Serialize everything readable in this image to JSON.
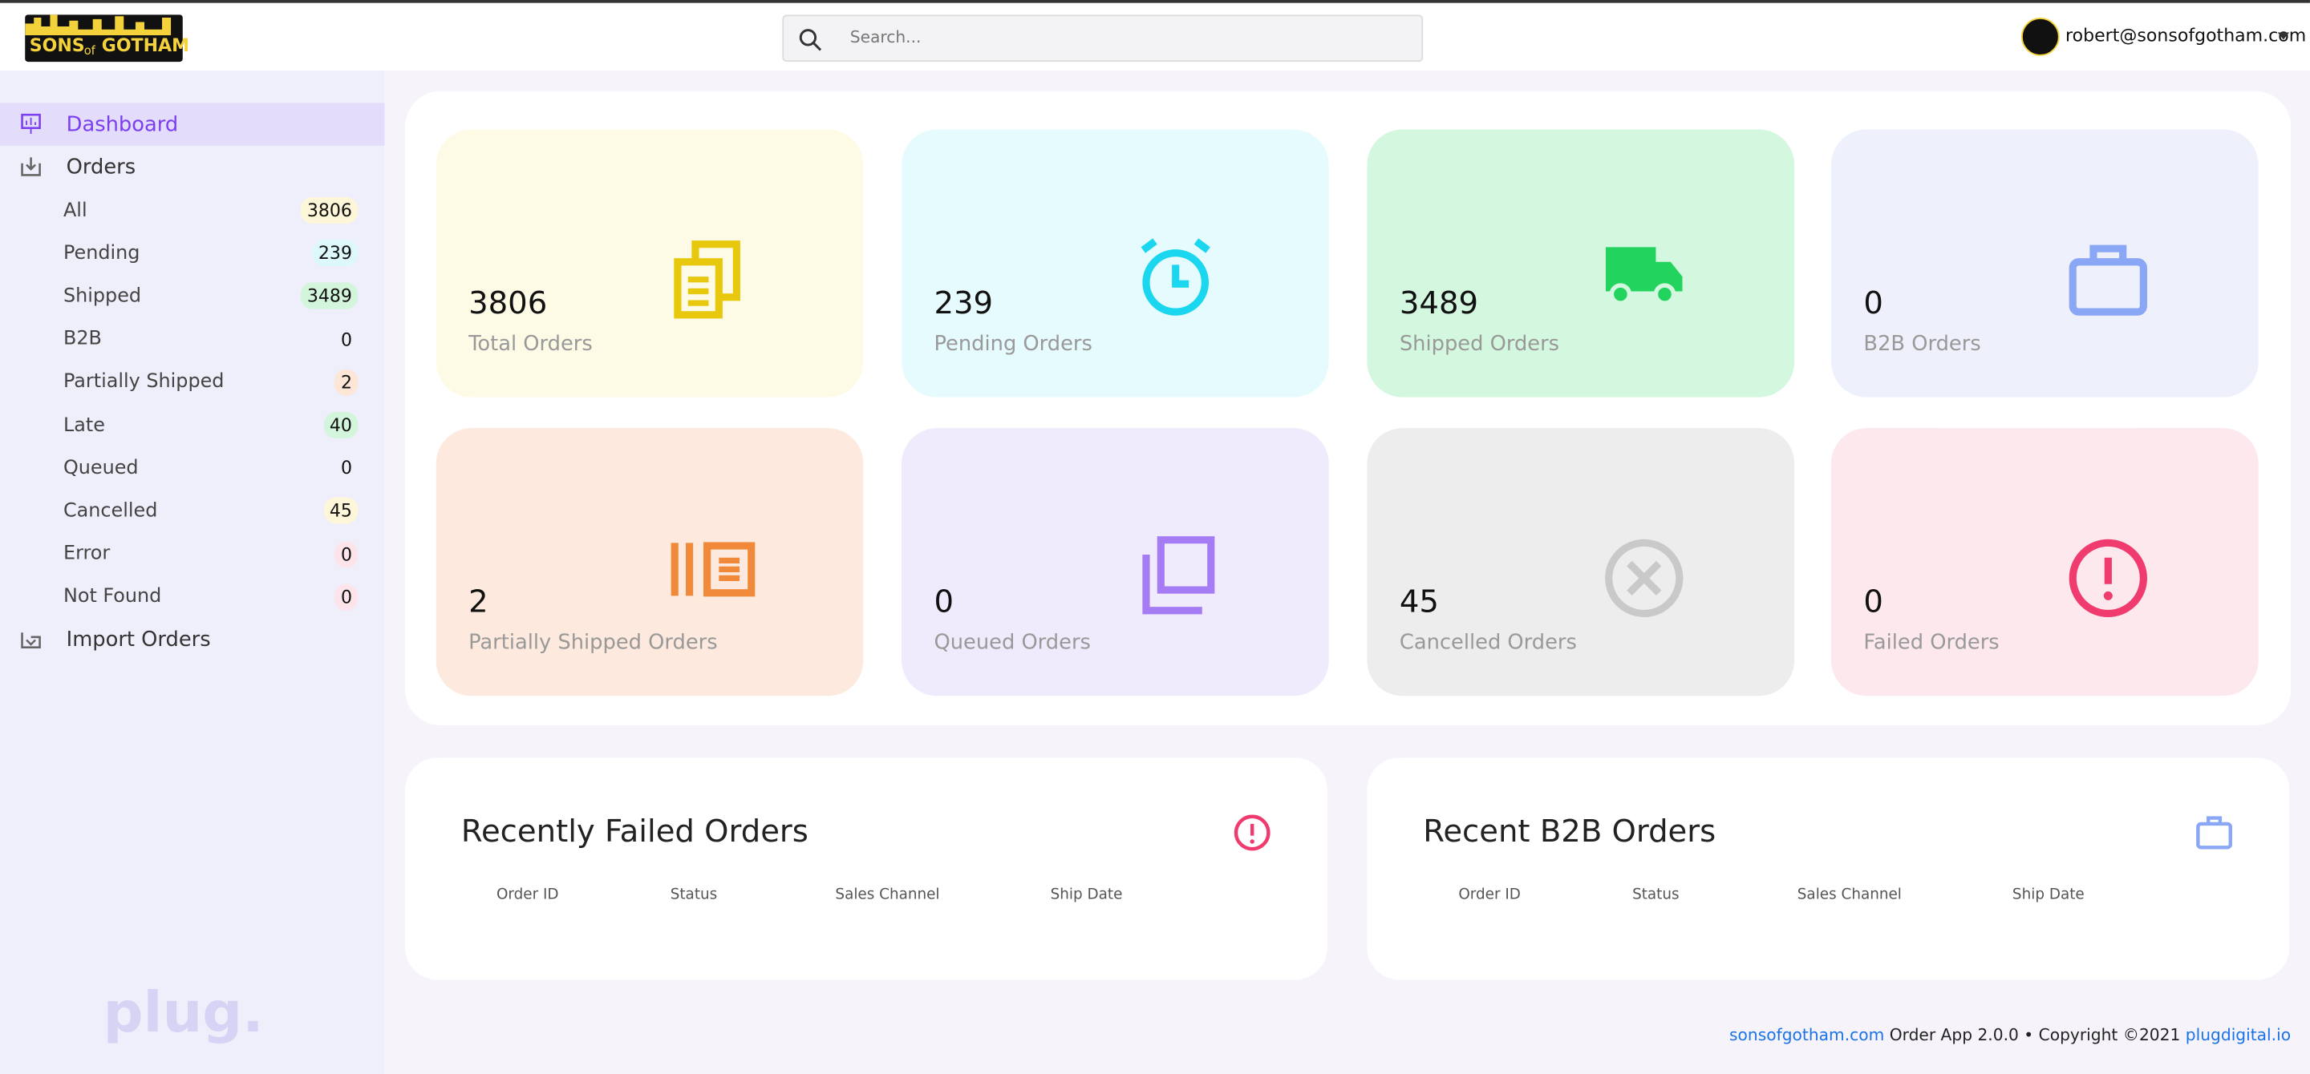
{
  "header": {
    "logo": [
      "SONS",
      "of",
      "GOTHAM"
    ],
    "search_placeholder": "Search...",
    "user": "robert@sonsofgotham.com"
  },
  "sidebar": {
    "dashboard": "Dashboard",
    "orders": "Orders",
    "order_filters": [
      {
        "label": "All",
        "count": 3806
      },
      {
        "label": "Pending",
        "count": 239
      },
      {
        "label": "Shipped",
        "count": 3489
      },
      {
        "label": "B2B",
        "count": 0
      },
      {
        "label": "Partially Shipped",
        "count": 2
      },
      {
        "label": "Late",
        "count": 40
      },
      {
        "label": "Queued",
        "count": 0
      },
      {
        "label": "Cancelled",
        "count": 45
      },
      {
        "label": "Error",
        "count": 0
      },
      {
        "label": "Not Found",
        "count": 0
      }
    ],
    "import": "Import Orders",
    "brand": "plug."
  },
  "cards": [
    {
      "value": 3806,
      "label": "Total Orders"
    },
    {
      "value": 239,
      "label": "Pending Orders"
    },
    {
      "value": 3489,
      "label": "Shipped Orders"
    },
    {
      "value": 0,
      "label": "B2B Orders"
    },
    {
      "value": 2,
      "label": "Partially Shipped Orders"
    },
    {
      "value": 0,
      "label": "Queued Orders"
    },
    {
      "value": 45,
      "label": "Cancelled Orders"
    },
    {
      "value": 0,
      "label": "Failed Orders"
    }
  ],
  "panels": [
    {
      "title": "Recently Failed Orders",
      "columns": [
        "Order ID",
        "Status",
        "Sales Channel",
        "Ship Date"
      ]
    },
    {
      "title": "Recent B2B Orders",
      "columns": [
        "Order ID",
        "Status",
        "Sales Channel",
        "Ship Date"
      ]
    }
  ],
  "footer": {
    "site": "sonsofgotham.com",
    "app": "Order App 2.0.0 • Copyright ©2021",
    "company": "plugdigital.io"
  }
}
